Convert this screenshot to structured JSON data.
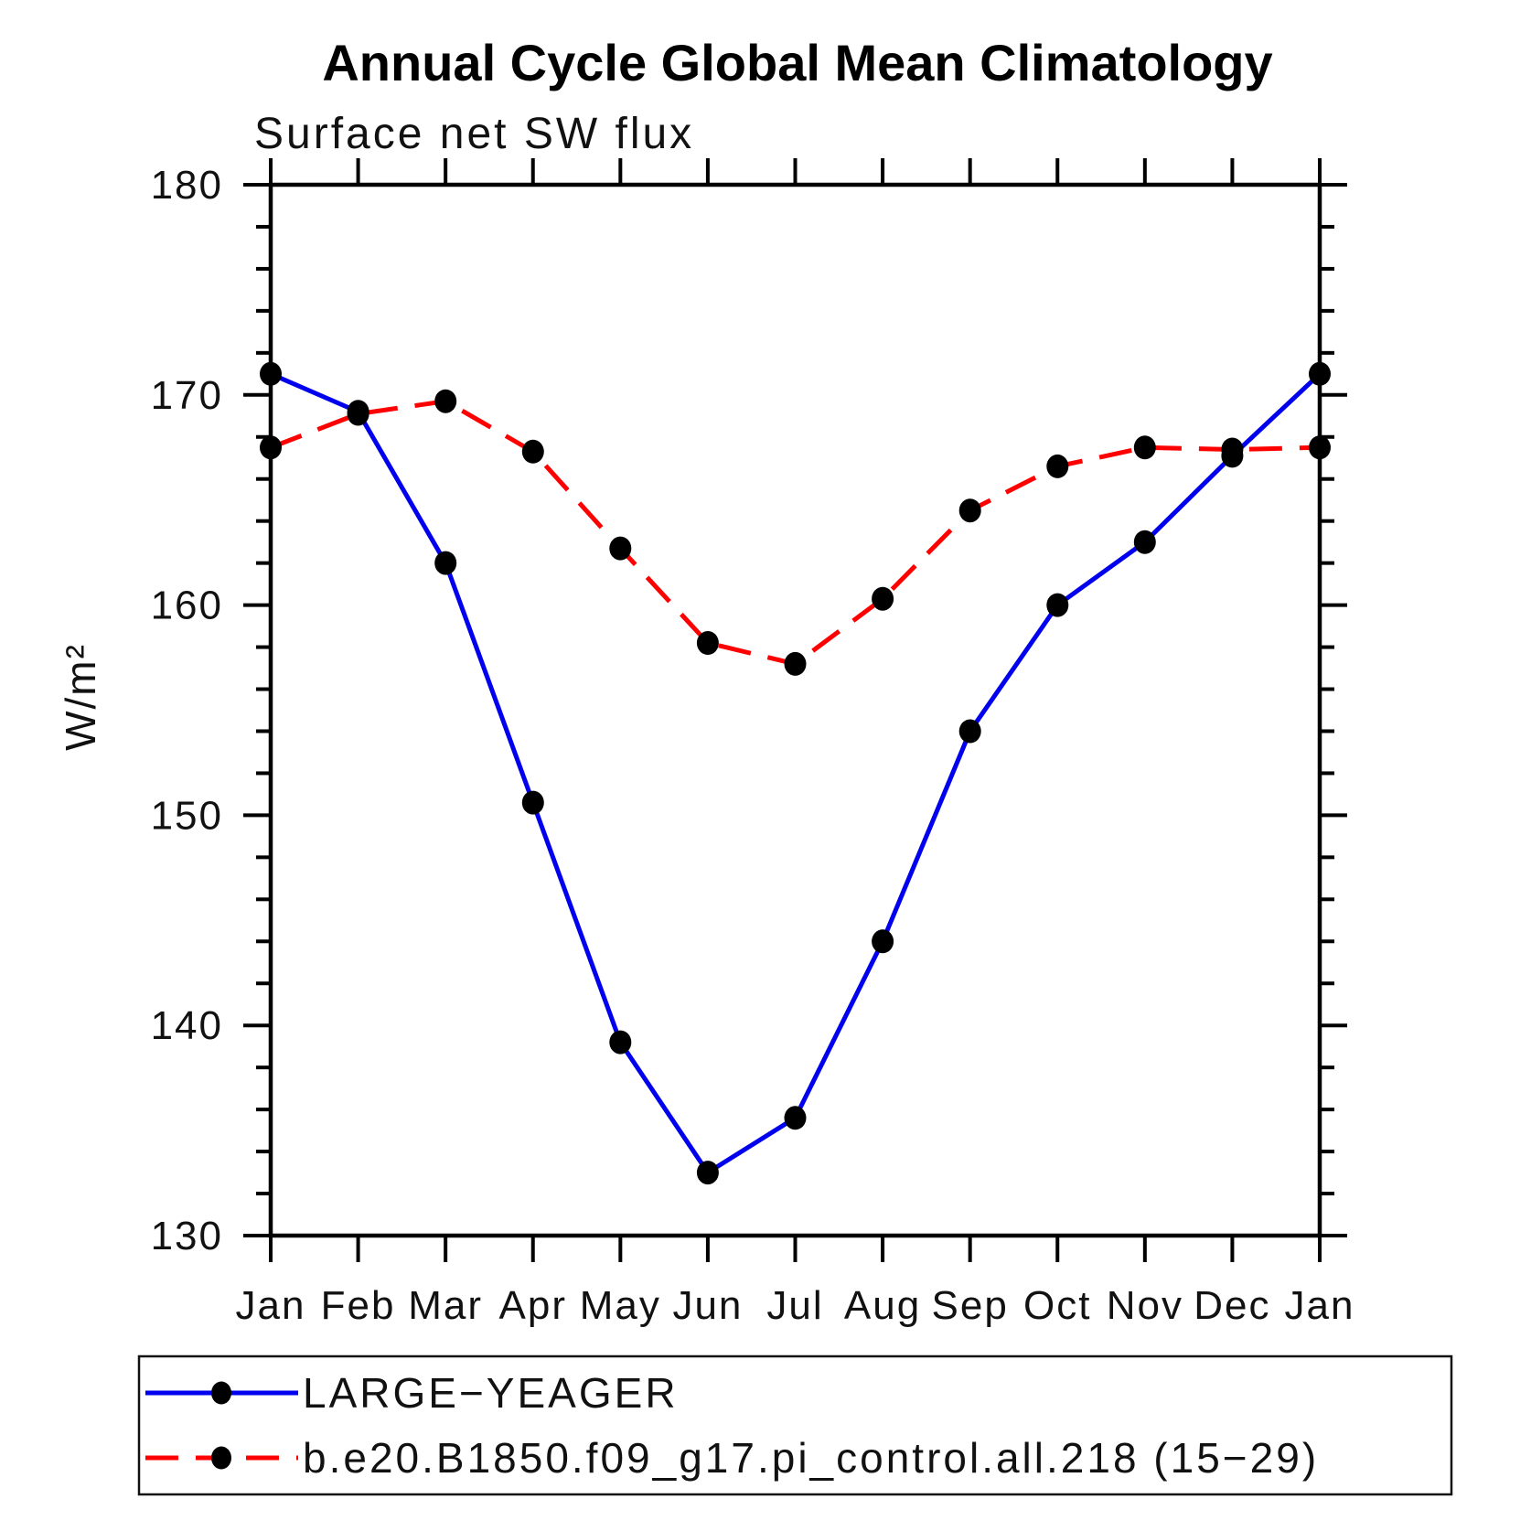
{
  "page": {
    "background": "#ffffff"
  },
  "chart_data": {
    "type": "line",
    "title": "Annual Cycle Global Mean Climatology",
    "subtitle": "Surface net SW flux",
    "ylabel": "W/m²",
    "xlabel": "",
    "ylim": [
      130,
      180
    ],
    "y_major_ticks": [
      130,
      140,
      150,
      160,
      170,
      180
    ],
    "y_minor_step": 2,
    "grid": false,
    "legend_position": "bottom",
    "categories": [
      "Jan",
      "Feb",
      "Mar",
      "Apr",
      "May",
      "Jun",
      "Jul",
      "Aug",
      "Sep",
      "Oct",
      "Nov",
      "Dec",
      "Jan"
    ],
    "series": [
      {
        "name": "LARGE−YEAGER",
        "line_style": "solid",
        "line_color": "#0000ee",
        "marker": "filled-circle",
        "marker_color": "#000000",
        "values": [
          171.0,
          169.2,
          162.0,
          150.6,
          139.2,
          133.0,
          135.6,
          144.0,
          154.0,
          160.0,
          163.0,
          167.1,
          171.0
        ]
      },
      {
        "name": "b.e20.B1850.f09_g17.pi_control.all.218 (15−29)",
        "line_style": "dashed",
        "line_color": "#ff0000",
        "marker": "filled-circle",
        "marker_color": "#000000",
        "values": [
          167.5,
          169.1,
          169.7,
          167.3,
          162.7,
          158.2,
          157.2,
          160.3,
          164.5,
          166.6,
          167.5,
          167.4,
          167.5
        ]
      }
    ],
    "axis_color": "#000000"
  }
}
